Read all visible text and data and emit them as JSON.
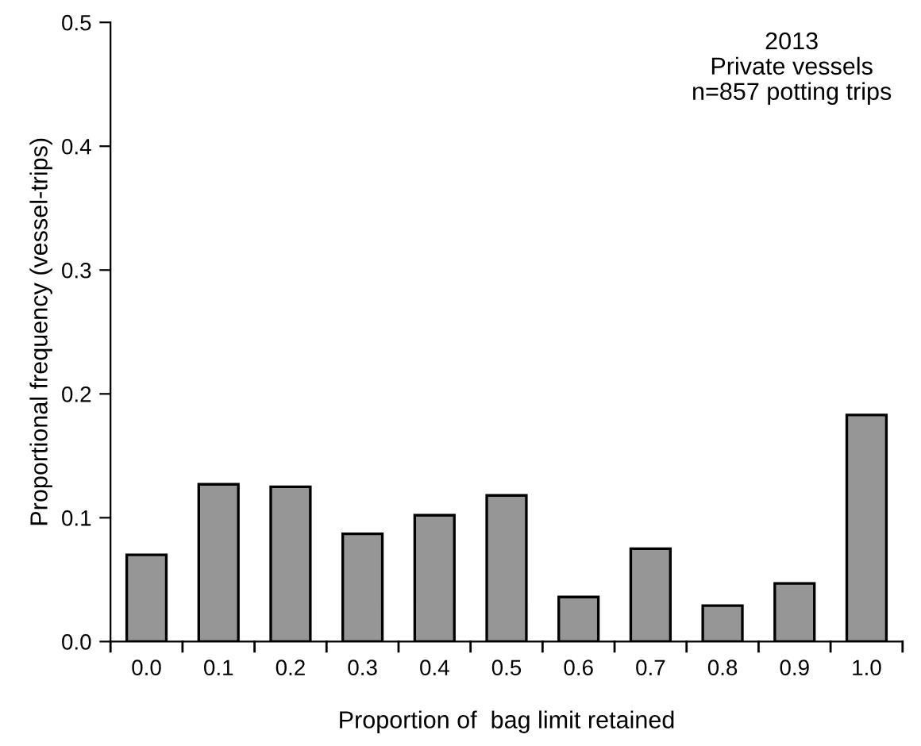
{
  "chart_data": {
    "type": "bar",
    "xlabel": "Proportion of  bag limit retained",
    "ylabel": "Proportional frequency (vessel-trips)",
    "categories": [
      "0.0",
      "0.1",
      "0.2",
      "0.3",
      "0.4",
      "0.5",
      "0.6",
      "0.7",
      "0.8",
      "0.9",
      "1.0"
    ],
    "values": [
      0.07,
      0.127,
      0.125,
      0.087,
      0.102,
      0.118,
      0.036,
      0.075,
      0.029,
      0.047,
      0.183
    ],
    "color": "#969696",
    "ylim": [
      0,
      0.5
    ],
    "yticks": [
      {
        "value": 0,
        "label": "0.0"
      },
      0.1,
      0.2,
      0.3,
      0.4,
      0.5
    ],
    "annotations": [
      "2013\nPrivate vessels\nn=857 potting trips"
    ],
    "grid": false,
    "legend": false
  }
}
